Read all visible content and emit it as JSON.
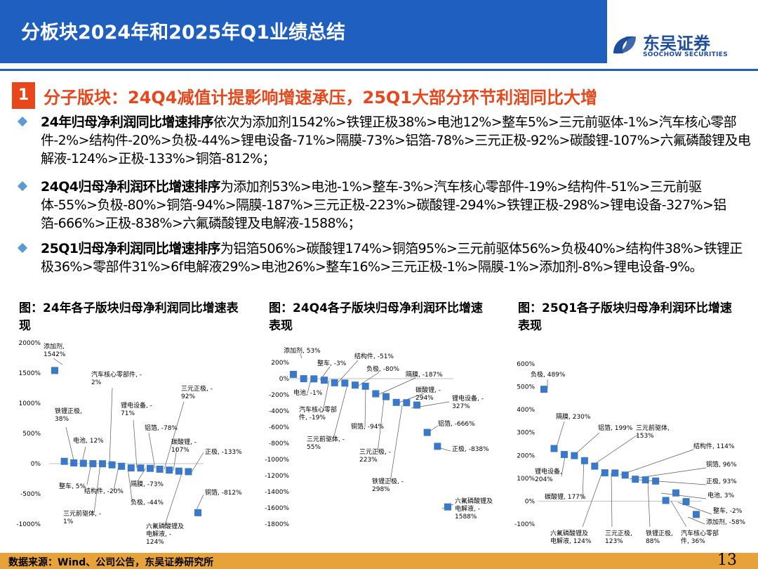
{
  "header": {
    "title": "分板块2024年和2025年Q1业绩总结",
    "logo_cn": "东吴证券",
    "logo_en": "SOOCHOW SECURITIES"
  },
  "section": {
    "number": "1",
    "title": "分子版块：24Q4减值计提影响增速承压，25Q1大部分环节利润同比大增"
  },
  "bullets": [
    {
      "bold": "24年归母净利润同比增速排序",
      "text": "依次为添加剂1542%>铁锂正极38%>电池12%>整车5%>三元前驱体-1%>汽车核心零部件-2%>结构件-20%>负极-44%>锂电设备-71%>隔膜-73%>铝箔-78%>三元正极-92%>碳酸锂-107%>六氟磷酸锂及电解液-124%>正极-133%>铜箔-812%；"
    },
    {
      "bold": "24Q4归母净利润环比增速排序",
      "text": "为添加剂53%>电池-1%>整车-3%>汽车核心零部件-19%>结构件-51%>三元前驱体-55%>负极-80%>铜箔-94%>隔膜-187%>三元正极-223%>碳酸锂-294%>铁锂正极-298%>锂电设备-327%>铝箔-666%>正极-838%>六氟磷酸锂及电解液-1588%；"
    },
    {
      "bold": "25Q1归母净利润同比增速排序",
      "text": "为铝箔506%>碳酸锂174%>铜箔95%>三元前驱体56%>负极40%>结构件38%>铁锂正极36%>零部件31%>6f电解液29%>电池26%>整车16%>三元正极-1%>隔膜-1%>添加剂-8%>锂电设备-9%。"
    }
  ],
  "chart_titles": [
    "图：24年各子版块归母净利润同比增速表现",
    "图：24Q4各子版块归母净利润环比增速表现",
    "图：25Q1各子版块归母净利润环比增速表现"
  ],
  "chart_data": [
    {
      "type": "scatter",
      "title": "图：24年各子版块归母净利润同比增速表现",
      "ylim": [
        -1000,
        2000
      ],
      "yticks": [
        "2000%",
        "1500%",
        "1000%",
        "500%",
        "0%",
        "-500%",
        "-1000%"
      ],
      "marker_color": "#3a78c9",
      "points": [
        {
          "label": "添加剂,\n1542%",
          "y": 1542
        },
        {
          "label": "铁锂正极,\n38%",
          "y": 38
        },
        {
          "label": "电池, 12%",
          "y": 12
        },
        {
          "label": "整车, 5%",
          "y": 5
        },
        {
          "label": "三元前驱体, -\n1%",
          "y": -1
        },
        {
          "label": "汽车核心零部件, -\n2%",
          "y": -2
        },
        {
          "label": "结构件, -20%",
          "y": -20
        },
        {
          "label": "负极, -44%",
          "y": -44
        },
        {
          "label": "锂电设备, -\n71%",
          "y": -71
        },
        {
          "label": "隔膜, -73%",
          "y": -73
        },
        {
          "label": "铝箔, -78%",
          "y": -78
        },
        {
          "label": "三元正极, -\n92%",
          "y": -92
        },
        {
          "label": "碳酸锂, -\n107%",
          "y": -107
        },
        {
          "label": "六氟磷酸锂及\n电解液, -\n124%",
          "y": -124
        },
        {
          "label": "正极, -133%",
          "y": -133
        },
        {
          "label": "铜箔, -812%",
          "y": -812
        }
      ]
    },
    {
      "type": "scatter",
      "title": "图：24Q4各子版块归母净利润环比增速表现",
      "ylim": [
        -1800,
        200
      ],
      "yticks": [
        "200%",
        "0%",
        "-200%",
        "-400%",
        "-600%",
        "-800%",
        "-1000%",
        "-1200%",
        "-1400%",
        "-1600%",
        "-1800%"
      ],
      "marker_color": "#3a78c9",
      "points": [
        {
          "label": "添加剂, 53%",
          "y": 53
        },
        {
          "label": "电池, -1%",
          "y": -1
        },
        {
          "label": "整车, -3%",
          "y": -3
        },
        {
          "label": "汽车核心零部\n件, -19%",
          "y": -19
        },
        {
          "label": "结构件, -51%",
          "y": -51
        },
        {
          "label": "三元前驱体, -\n55%",
          "y": -55
        },
        {
          "label": "负极, -80%",
          "y": -80
        },
        {
          "label": "铜箔, -94%",
          "y": -94
        },
        {
          "label": "隔膜, -187%",
          "y": -187
        },
        {
          "label": "三元正极, -\n223%",
          "y": -223
        },
        {
          "label": "碳酸锂, -\n294%",
          "y": -294
        },
        {
          "label": "铁锂正极, -\n298%",
          "y": -298
        },
        {
          "label": "锂电设备, -\n327%",
          "y": -327
        },
        {
          "label": "铝箔, -666%",
          "y": -666
        },
        {
          "label": "正极, -838%",
          "y": -838
        },
        {
          "label": "六氟磷酸锂及\n电解液, -\n1588%",
          "y": -1588
        }
      ]
    },
    {
      "type": "scatter",
      "title": "图：25Q1各子版块归母净利润环比增速表现",
      "ylim": [
        -100,
        600
      ],
      "yticks": [
        "600%",
        "500%",
        "400%",
        "300%",
        "200%",
        "100%",
        "0%",
        "-100%"
      ],
      "marker_color": "#3a78c9",
      "points": [
        {
          "label": "负极, 489%",
          "y": 489
        },
        {
          "label": "隔膜, 230%",
          "y": 230
        },
        {
          "label": "锂电设备,\n204%",
          "y": 204
        },
        {
          "label": "铝箔, 199%",
          "y": 199
        },
        {
          "label": "碳酸锂, 177%",
          "y": 177
        },
        {
          "label": "三元前驱体,\n153%",
          "y": 153
        },
        {
          "label": "六氟磷酸锂及\n电解液, 124%",
          "y": 124
        },
        {
          "label": "三元正极,\n123%",
          "y": 123
        },
        {
          "label": "结构件, 114%",
          "y": 114
        },
        {
          "label": "铜箔, 96%",
          "y": 96
        },
        {
          "label": "正极, 93%",
          "y": 93
        },
        {
          "label": "铁锂正极,\n88%",
          "y": 88
        },
        {
          "label": "电池, 3%",
          "y": 3
        },
        {
          "label": "汽车核心零部\n件, 36%",
          "y": 36
        },
        {
          "label": "整车, -2%",
          "y": -2
        },
        {
          "label": "添加剂, -58%",
          "y": -58
        }
      ]
    }
  ],
  "footer": {
    "source": "数据来源：Wind、公司公告，东吴证券研究所",
    "page": "13"
  }
}
